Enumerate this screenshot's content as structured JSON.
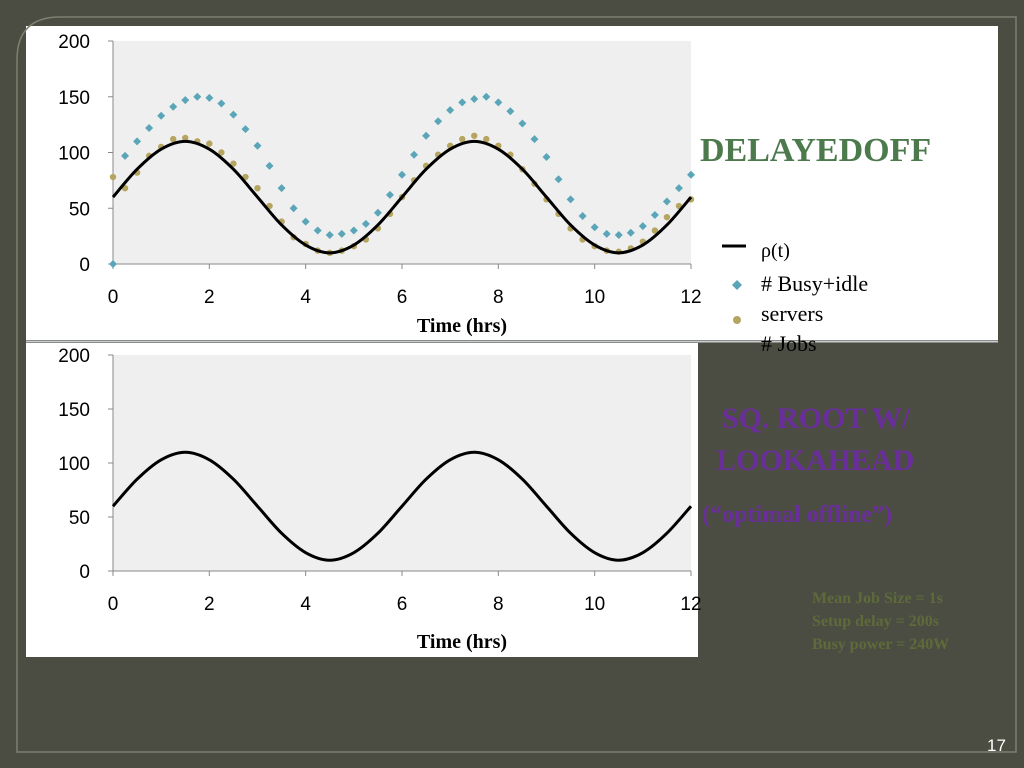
{
  "slide": {
    "page_number": "17",
    "title_top": "DELAYEDOFF",
    "title_bottom_line1": "SQ. ROOT W/",
    "title_bottom_line2": "LOOKAHEAD",
    "subtitle_bottom": "(“optimal offline”)",
    "params": [
      "Mean Job Size = 1s",
      "Setup delay = 200s",
      "Busy power = 240W"
    ],
    "colors": {
      "background": "#4b4d42",
      "title_top": "#4d7a4d",
      "title_bottom": "#6a2e9a",
      "params": "#5e6a3a"
    }
  },
  "chart_data": [
    {
      "type": "scatter",
      "title": "",
      "xlabel": "Time (hrs)",
      "ylabel": "",
      "xlim": [
        0,
        12
      ],
      "ylim": [
        0,
        200
      ],
      "x_ticks": [
        "0",
        "2",
        "4",
        "6",
        "8",
        "10",
        "12"
      ],
      "y_ticks": [
        "0",
        "50",
        "100",
        "150",
        "200"
      ],
      "grid": false,
      "plot_background": "#efefef",
      "legend_placement": "right",
      "legend": [
        {
          "label": "ρ(t)",
          "marker": "line",
          "color": "#000000"
        },
        {
          "label": "# Busy+idle",
          "marker": "diamond",
          "color": "#5aa6b8"
        },
        {
          "label": "servers",
          "marker": "none",
          "color": "#000000"
        },
        {
          "label": "# Jobs",
          "marker": "circle",
          "color": "#b5a560"
        }
      ],
      "series": [
        {
          "name": "ρ(t)",
          "kind": "line",
          "color": "#000000",
          "x": [
            0,
            0.5,
            1,
            1.5,
            2,
            2.5,
            3,
            3.5,
            4,
            4.5,
            5,
            5.5,
            6,
            6.5,
            7,
            7.5,
            8,
            8.5,
            9,
            9.5,
            10,
            10.5,
            11,
            11.5,
            12
          ],
          "y": [
            60,
            85,
            103,
            110,
            103,
            85,
            60,
            35,
            17,
            10,
            17,
            35,
            60,
            85,
            103,
            110,
            103,
            85,
            60,
            35,
            17,
            10,
            17,
            35,
            60
          ]
        },
        {
          "name": "# Busy+idle servers",
          "kind": "scatter",
          "marker": "diamond",
          "color": "#5aa6b8",
          "x": [
            0,
            0.25,
            0.5,
            0.75,
            1,
            1.25,
            1.5,
            1.75,
            2,
            2.25,
            2.5,
            2.75,
            3,
            3.25,
            3.5,
            3.75,
            4,
            4.25,
            4.5,
            4.75,
            5,
            5.25,
            5.5,
            5.75,
            6,
            6.25,
            6.5,
            6.75,
            7,
            7.25,
            7.5,
            7.75,
            8,
            8.25,
            8.5,
            8.75,
            9,
            9.25,
            9.5,
            9.75,
            10,
            10.25,
            10.5,
            10.75,
            11,
            11.25,
            11.5,
            11.75,
            12
          ],
          "y": [
            0,
            97,
            110,
            122,
            133,
            141,
            147,
            150,
            149,
            144,
            134,
            121,
            106,
            88,
            68,
            50,
            38,
            30,
            26,
            27,
            30,
            36,
            46,
            62,
            80,
            98,
            115,
            128,
            138,
            145,
            148,
            150,
            145,
            137,
            126,
            112,
            96,
            76,
            58,
            43,
            33,
            27,
            26,
            28,
            34,
            44,
            56,
            68,
            80
          ]
        },
        {
          "name": "# Jobs",
          "kind": "scatter",
          "marker": "circle",
          "color": "#b5a560",
          "x": [
            0,
            0.25,
            0.5,
            0.75,
            1,
            1.25,
            1.5,
            1.75,
            2,
            2.25,
            2.5,
            2.75,
            3,
            3.25,
            3.5,
            3.75,
            4,
            4.25,
            4.5,
            4.75,
            5,
            5.25,
            5.5,
            5.75,
            6,
            6.25,
            6.5,
            6.75,
            7,
            7.25,
            7.5,
            7.75,
            8,
            8.25,
            8.5,
            8.75,
            9,
            9.25,
            9.5,
            9.75,
            10,
            10.25,
            10.5,
            10.75,
            11,
            11.25,
            11.5,
            11.75,
            12
          ],
          "y": [
            78,
            68,
            82,
            97,
            105,
            112,
            113,
            110,
            108,
            100,
            90,
            78,
            68,
            52,
            38,
            24,
            18,
            12,
            10,
            12,
            16,
            22,
            32,
            45,
            60,
            75,
            88,
            98,
            106,
            112,
            115,
            112,
            106,
            98,
            85,
            72,
            58,
            45,
            32,
            22,
            16,
            12,
            11,
            14,
            20,
            30,
            42,
            52,
            58
          ]
        }
      ]
    },
    {
      "type": "line",
      "title": "",
      "xlabel": "Time (hrs)",
      "ylabel": "",
      "xlim": [
        0,
        12
      ],
      "ylim": [
        0,
        200
      ],
      "x_ticks": [
        "0",
        "2",
        "4",
        "6",
        "8",
        "10",
        "12"
      ],
      "y_ticks": [
        "0",
        "50",
        "100",
        "150",
        "200"
      ],
      "grid": false,
      "plot_background": "#efefef",
      "series": [
        {
          "name": "ρ(t)",
          "kind": "line",
          "color": "#000000",
          "x": [
            0,
            0.5,
            1,
            1.5,
            2,
            2.5,
            3,
            3.5,
            4,
            4.5,
            5,
            5.5,
            6,
            6.5,
            7,
            7.5,
            8,
            8.5,
            9,
            9.5,
            10,
            10.5,
            11,
            11.5,
            12
          ],
          "y": [
            60,
            85,
            103,
            110,
            103,
            85,
            60,
            35,
            17,
            10,
            17,
            35,
            60,
            85,
            103,
            110,
            103,
            85,
            60,
            35,
            17,
            10,
            17,
            35,
            60
          ]
        }
      ]
    }
  ]
}
